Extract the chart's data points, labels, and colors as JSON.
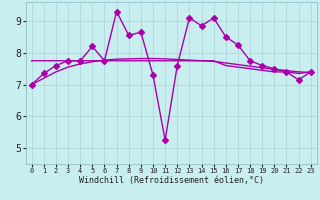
{
  "xlabel": "Windchill (Refroidissement éolien,°C)",
  "background_color": "#c8eef0",
  "grid_color": "#b0d8dc",
  "line_color": "#aa00aa",
  "xlim": [
    -0.5,
    23.5
  ],
  "ylim": [
    4.5,
    9.6
  ],
  "xticks": [
    0,
    1,
    2,
    3,
    4,
    5,
    6,
    7,
    8,
    9,
    10,
    11,
    12,
    13,
    14,
    15,
    16,
    17,
    18,
    19,
    20,
    21,
    22,
    23
  ],
  "yticks": [
    5,
    6,
    7,
    8,
    9
  ],
  "main_y": [
    7.0,
    7.35,
    7.6,
    7.75,
    7.75,
    8.2,
    7.75,
    9.3,
    8.55,
    8.65,
    7.3,
    5.25,
    7.6,
    9.1,
    8.85,
    9.1,
    8.5,
    8.25,
    7.75,
    7.6,
    7.5,
    7.4,
    7.15,
    7.4
  ],
  "flat_y": [
    7.75,
    7.75,
    7.75,
    7.75,
    7.75,
    7.75,
    7.75,
    7.75,
    7.75,
    7.75,
    7.75,
    7.75,
    7.75,
    7.75,
    7.75,
    7.75,
    7.6,
    7.55,
    7.5,
    7.45,
    7.4,
    7.4,
    7.35,
    7.4
  ],
  "trend_y": [
    7.0,
    7.2,
    7.4,
    7.55,
    7.65,
    7.72,
    7.77,
    7.8,
    7.81,
    7.82,
    7.82,
    7.81,
    7.79,
    7.77,
    7.75,
    7.73,
    7.68,
    7.63,
    7.58,
    7.53,
    7.48,
    7.44,
    7.4,
    7.38
  ],
  "lw": 1.0,
  "marker_size": 3.0,
  "xlabel_fontsize": 6,
  "tick_fontsize_x": 5,
  "tick_fontsize_y": 7
}
